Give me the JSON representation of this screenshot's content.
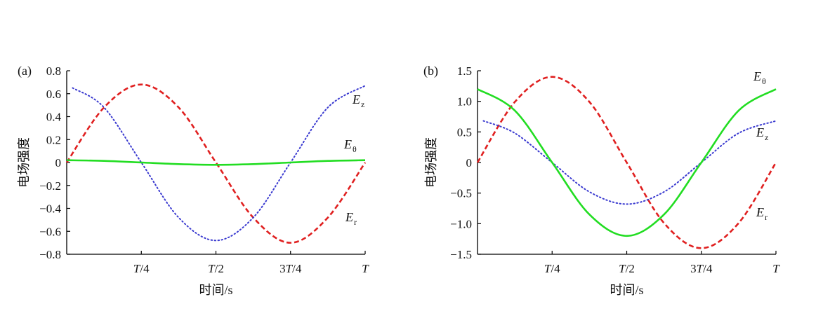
{
  "chart_data": [
    {
      "type": "line",
      "panel_label": "(a)",
      "xlabel": "时间/s",
      "ylabel": "电场强度",
      "x_ticks": [
        "T/4",
        "T/2",
        "3T/4",
        "T"
      ],
      "x_tick_values": [
        0.25,
        0.5,
        0.75,
        1.0
      ],
      "xlim": [
        0,
        1
      ],
      "ylim": [
        -0.8,
        0.8
      ],
      "y_ticks": [
        "0.8",
        "0.6",
        "0.4",
        "0.2",
        "0",
        "−0.2",
        "−0.4",
        "−0.6",
        "−0.8"
      ],
      "y_tick_values": [
        0.8,
        0.6,
        0.4,
        0.2,
        0,
        -0.2,
        -0.4,
        -0.6,
        -0.8
      ],
      "grid": false,
      "series": [
        {
          "name": "E_r",
          "main": "E",
          "sub": "r",
          "color": "#e02020",
          "style": "dashed",
          "x": [
            0,
            0.125,
            0.25,
            0.375,
            0.5,
            0.625,
            0.75,
            0.875,
            1.0
          ],
          "y": [
            0.0,
            0.48,
            0.68,
            0.48,
            0.0,
            -0.48,
            -0.7,
            -0.48,
            0.0
          ]
        },
        {
          "name": "E_z",
          "main": "E",
          "sub": "z",
          "color": "#3a3ad0",
          "style": "dotted",
          "x": [
            0.02,
            0.125,
            0.25,
            0.375,
            0.5,
            0.625,
            0.75,
            0.875,
            1.0
          ],
          "y": [
            0.65,
            0.48,
            0.0,
            -0.48,
            -0.68,
            -0.48,
            0.0,
            0.48,
            0.67
          ]
        },
        {
          "name": "E_θ",
          "main": "E",
          "sub": "θ",
          "color": "#22dd22",
          "style": "solid",
          "x": [
            0,
            0.125,
            0.25,
            0.375,
            0.5,
            0.625,
            0.75,
            0.875,
            1.0
          ],
          "y": [
            0.02,
            0.014,
            0.0,
            -0.014,
            -0.02,
            -0.014,
            0.0,
            0.014,
            0.02
          ]
        }
      ]
    },
    {
      "type": "line",
      "panel_label": "(b)",
      "xlabel": "时间/s",
      "ylabel": "电场强度",
      "x_ticks": [
        "T/4",
        "T/2",
        "3T/4",
        "T"
      ],
      "x_tick_values": [
        0.25,
        0.5,
        0.75,
        1.0
      ],
      "xlim": [
        0,
        1
      ],
      "ylim": [
        -1.5,
        1.5
      ],
      "y_ticks": [
        "1.5",
        "1.0",
        "0.5",
        "0",
        "−0.5",
        "−1.0",
        "−1.5"
      ],
      "y_tick_values": [
        1.5,
        1.0,
        0.5,
        0,
        -0.5,
        -1.0,
        -1.5
      ],
      "grid": false,
      "series": [
        {
          "name": "E_r",
          "main": "E",
          "sub": "r",
          "color": "#e02020",
          "style": "dashed",
          "x": [
            0,
            0.125,
            0.25,
            0.375,
            0.5,
            0.625,
            0.75,
            0.875,
            1.0
          ],
          "y": [
            0.0,
            0.99,
            1.4,
            0.99,
            0.0,
            -0.99,
            -1.4,
            -0.99,
            0.0
          ]
        },
        {
          "name": "E_z",
          "main": "E",
          "sub": "z",
          "color": "#3a3ad0",
          "style": "dotted",
          "x": [
            0.02,
            0.125,
            0.25,
            0.375,
            0.5,
            0.625,
            0.75,
            0.875,
            1.0
          ],
          "y": [
            0.68,
            0.48,
            0.0,
            -0.48,
            -0.68,
            -0.48,
            0.0,
            0.48,
            0.68
          ]
        },
        {
          "name": "E_θ",
          "main": "E",
          "sub": "θ",
          "color": "#22dd22",
          "style": "solid",
          "x": [
            0,
            0.125,
            0.25,
            0.375,
            0.5,
            0.625,
            0.75,
            0.875,
            1.0
          ],
          "y": [
            1.2,
            0.85,
            0.0,
            -0.85,
            -1.2,
            -0.85,
            0.0,
            0.85,
            1.2
          ]
        }
      ]
    }
  ]
}
